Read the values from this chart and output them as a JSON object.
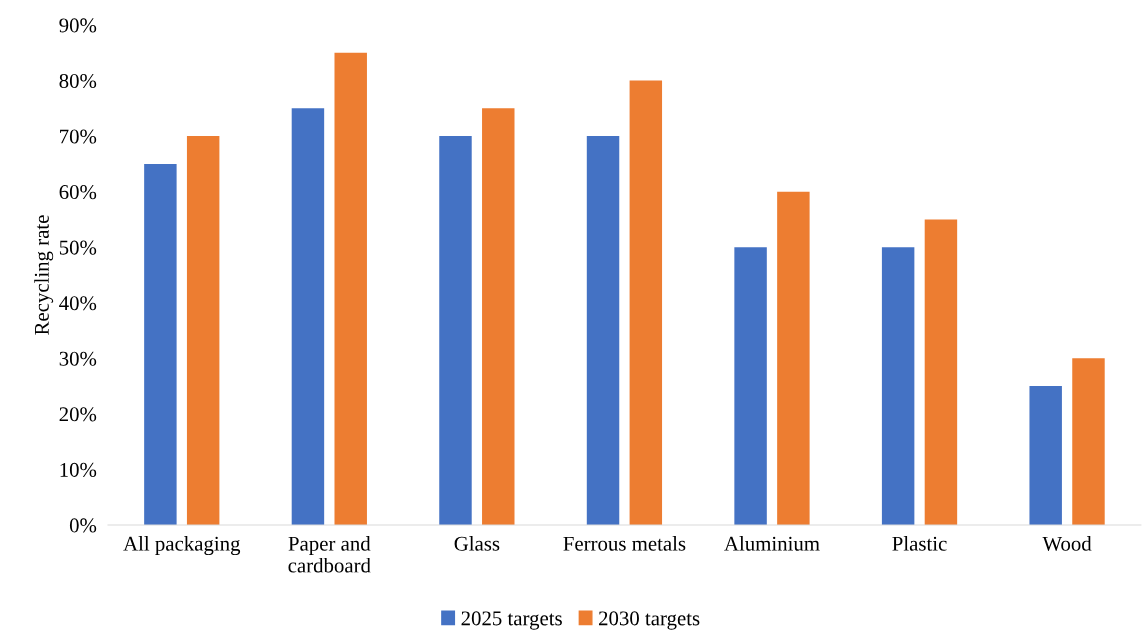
{
  "chart_data": {
    "type": "bar",
    "ylabel": "Recycling rate",
    "categories": [
      "All packaging",
      "Paper and cardboard",
      "Glass",
      "Ferrous metals",
      "Aluminium",
      "Plastic",
      "Wood"
    ],
    "series": [
      {
        "name": "2025 targets",
        "color": "#4472c4",
        "values": [
          65,
          75,
          70,
          70,
          50,
          50,
          25
        ]
      },
      {
        "name": "2030 targets",
        "color": "#ed7d31",
        "values": [
          70,
          85,
          75,
          80,
          60,
          55,
          30
        ]
      }
    ],
    "ylim": [
      0,
      90
    ],
    "yticks": [
      {
        "value": 0,
        "label": "0%"
      },
      {
        "value": 10,
        "label": "10%"
      },
      {
        "value": 20,
        "label": "20%"
      },
      {
        "value": 30,
        "label": "30%"
      },
      {
        "value": 40,
        "label": "40%"
      },
      {
        "value": 50,
        "label": "50%"
      },
      {
        "value": 60,
        "label": "60%"
      },
      {
        "value": 70,
        "label": "70%"
      },
      {
        "value": 80,
        "label": "80%"
      },
      {
        "value": 90,
        "label": "90%"
      }
    ],
    "grid": false,
    "legend": "bottom"
  }
}
